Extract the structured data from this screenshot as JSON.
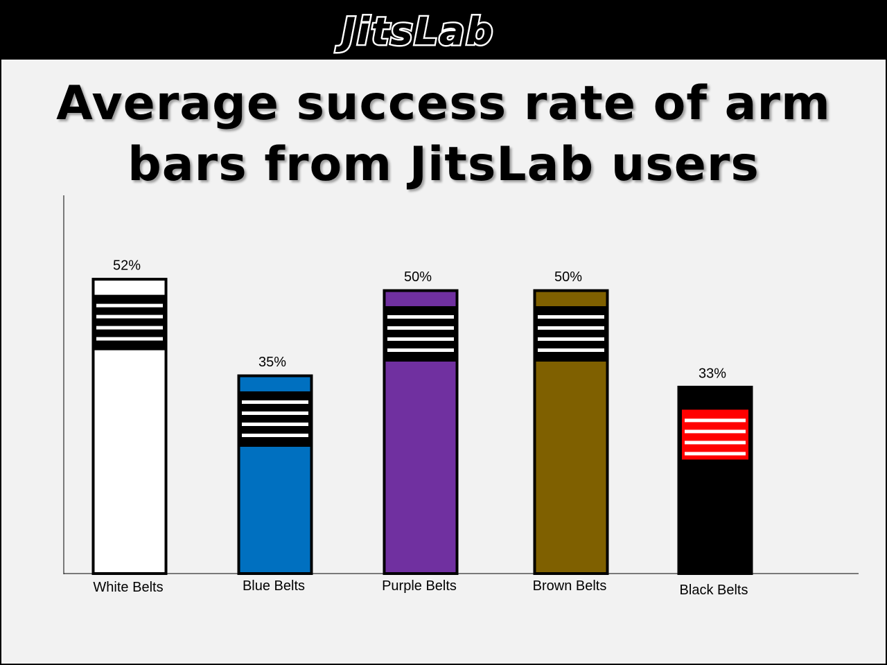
{
  "brand": {
    "logo_text": "JitsLab"
  },
  "title": "Average success rate of arm bars from JitsLab users",
  "chart_data": {
    "type": "bar",
    "title": "Average success rate of arm bars from JitsLab users",
    "xlabel": "",
    "ylabel": "",
    "ylim": [
      0,
      64
    ],
    "grid": false,
    "legend": "none",
    "categories": [
      "White Belts",
      "Blue Belts",
      "Purple Belts",
      "Brown Belts",
      "Black Belts"
    ],
    "values": [
      52,
      35,
      50,
      50,
      33
    ],
    "data_labels": [
      "52%",
      "35%",
      "50%",
      "50%",
      "33%"
    ],
    "bar_styles": [
      {
        "fill": "#ffffff",
        "stripe_band": "#000000",
        "stripe_lines": "#ffffff",
        "outline": "#000000"
      },
      {
        "fill": "#0070c0",
        "stripe_band": "#000000",
        "stripe_lines": "#ffffff",
        "outline": "#000000"
      },
      {
        "fill": "#7030a0",
        "stripe_band": "#000000",
        "stripe_lines": "#ffffff",
        "outline": "#000000"
      },
      {
        "fill": "#7f6000",
        "stripe_band": "#000000",
        "stripe_lines": "#ffffff",
        "outline": "#000000"
      },
      {
        "fill": "#000000",
        "stripe_band": "#ff0000",
        "stripe_lines": "#ffffff",
        "outline": "#000000"
      }
    ]
  }
}
